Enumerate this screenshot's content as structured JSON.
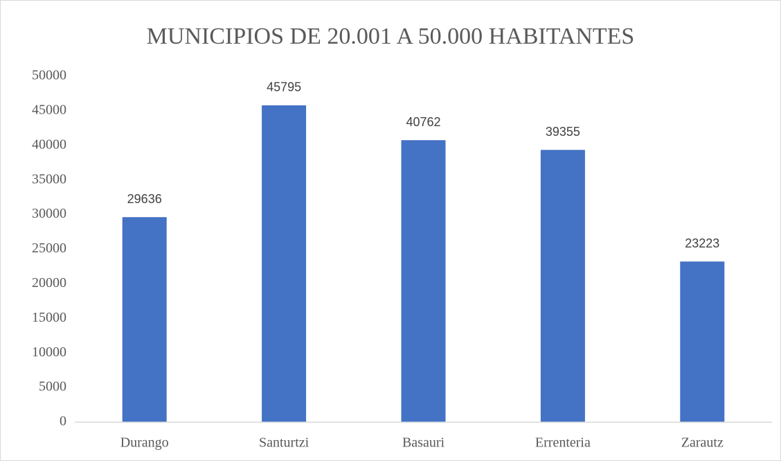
{
  "chart_data": {
    "type": "bar",
    "title": "MUNICIPIOS DE 20.001 A 50.000 HABITANTES",
    "categories": [
      "Durango",
      "Santurtzi",
      "Basauri",
      "Errenteria",
      "Zarautz"
    ],
    "values": [
      29636,
      45795,
      40762,
      39355,
      23223
    ],
    "color": "#4472c4",
    "ylim": [
      0,
      50000
    ],
    "yticks": [
      0,
      5000,
      10000,
      15000,
      20000,
      25000,
      30000,
      35000,
      40000,
      45000,
      50000
    ],
    "grid": false
  }
}
